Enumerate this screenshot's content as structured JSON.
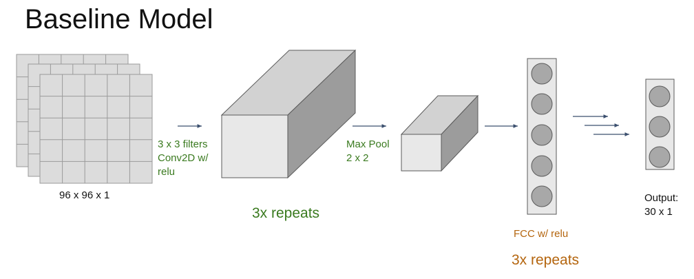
{
  "title": "Baseline Model",
  "input_label": "96 x 96 x 1",
  "conv_label": [
    "3 x 3 filters",
    "Conv2D w/",
    "relu"
  ],
  "conv_repeats": "3x repeats",
  "pool_label": [
    "Max Pool",
    "2 x 2"
  ],
  "fcc_label": "FCC w/ relu",
  "fcc_repeats": "3x repeats",
  "output_label": [
    "Output:",
    "30 x 1"
  ],
  "colors": {
    "conv_text": "#3a7a1f",
    "fcc_text": "#b4650e",
    "node_fill": "#a8a8a8",
    "box_fill": "#e8e8e8"
  }
}
